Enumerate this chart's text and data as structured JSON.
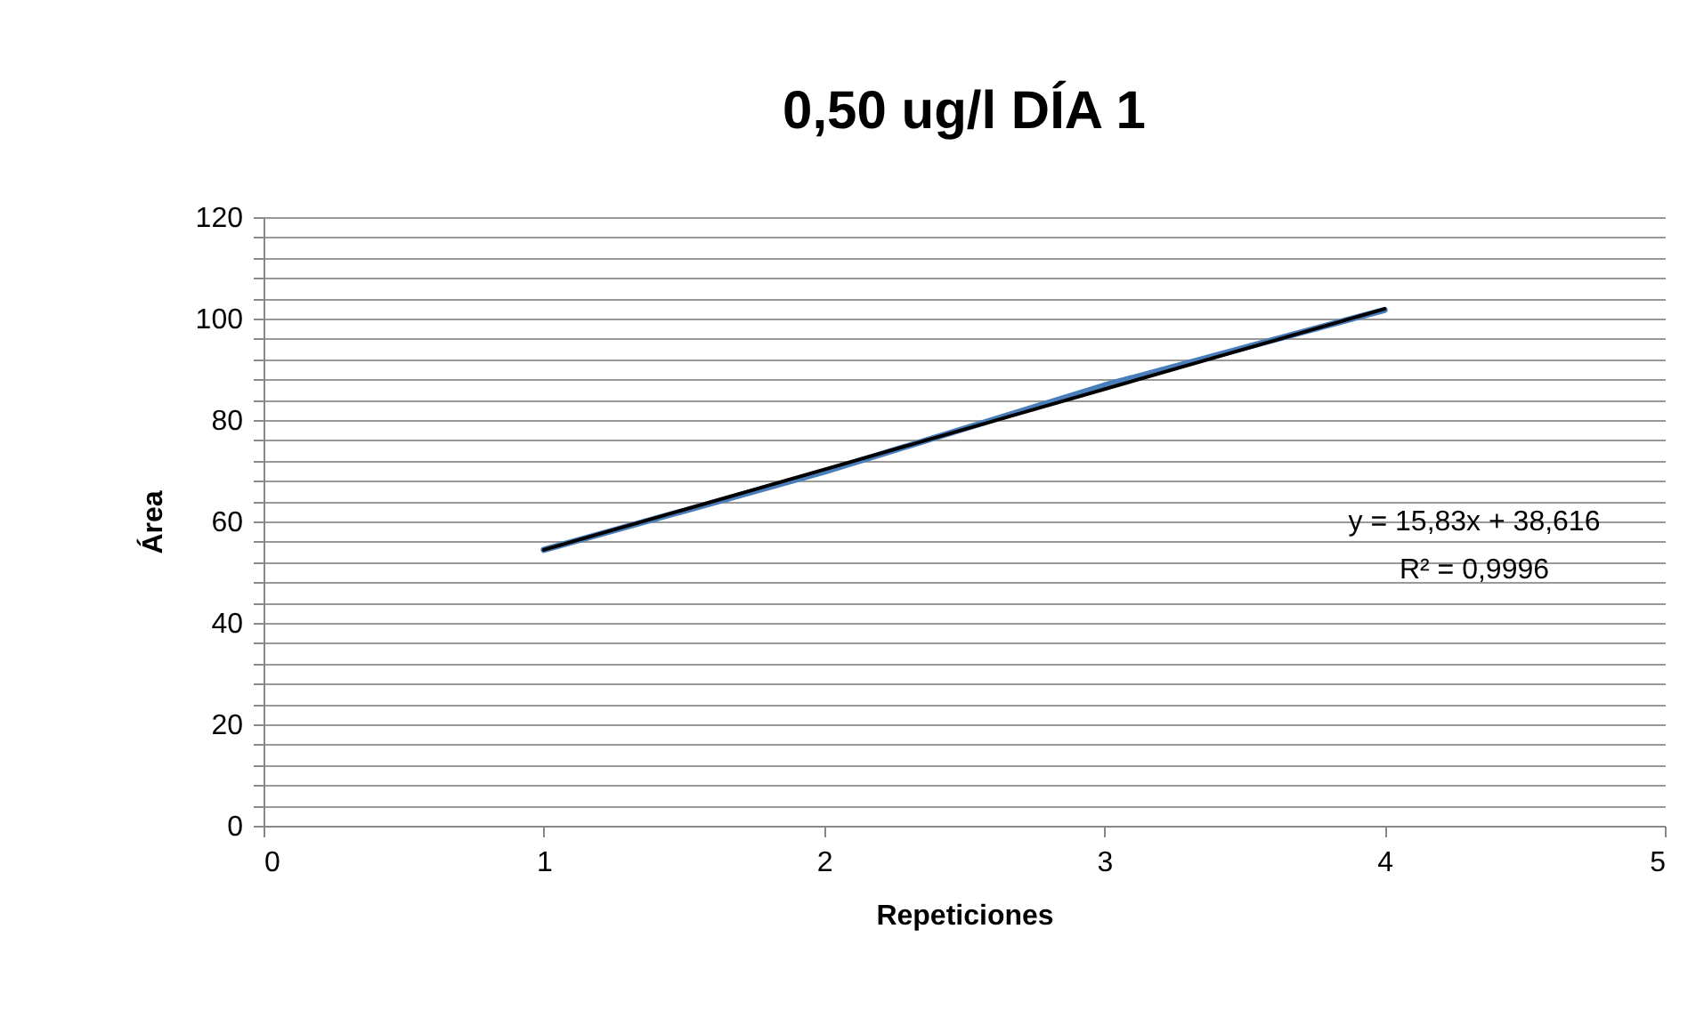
{
  "chart_data": {
    "type": "line",
    "title": "0,50 ug/l DÍA 1",
    "xlabel": "Repeticiones",
    "ylabel": "Área",
    "x": [
      1,
      2,
      3,
      4
    ],
    "series": [
      {
        "color": "#4a7ebb",
        "values": [
          54.4,
          69.8,
          86.8,
          101.7
        ]
      },
      {
        "type": "line",
        "x": [
          1,
          4
        ],
        "color": "#000000",
        "values": [
          54.4,
          101.9
        ]
      }
    ],
    "xlim": [
      0,
      5
    ],
    "xticks": [
      0,
      1,
      2,
      3,
      4,
      5
    ],
    "ylim": [
      0,
      120
    ],
    "yticks": [
      0,
      {
        "value": 4,
        "label": null
      },
      {
        "value": 8,
        "label": null
      },
      {
        "value": 12,
        "label": null
      },
      {
        "value": 16,
        "label": null
      },
      20,
      {
        "value": 24,
        "label": null
      },
      {
        "value": 28,
        "label": null
      },
      {
        "value": 32,
        "label": null
      },
      {
        "value": 36,
        "label": null
      },
      40,
      {
        "value": 44,
        "label": null
      },
      {
        "value": 48,
        "label": null
      },
      {
        "value": 52,
        "label": null
      },
      {
        "value": 56,
        "label": null
      },
      60,
      {
        "value": 64,
        "label": null
      },
      {
        "value": 68,
        "label": null
      },
      {
        "value": 72,
        "label": null
      },
      {
        "value": 76,
        "label": null
      },
      80,
      {
        "value": 84,
        "label": null
      },
      {
        "value": 88,
        "label": null
      },
      {
        "value": 92,
        "label": null
      },
      {
        "value": 96,
        "label": null
      },
      100,
      {
        "value": 104,
        "label": null
      },
      {
        "value": 108,
        "label": null
      },
      {
        "value": 112,
        "label": null
      },
      {
        "value": 116,
        "label": null
      },
      120
    ],
    "grid": "y",
    "marker": "none",
    "line_style": "solid",
    "annotations": [
      "y = 15,83x + 38,616",
      "R² = 0,9996"
    ]
  }
}
